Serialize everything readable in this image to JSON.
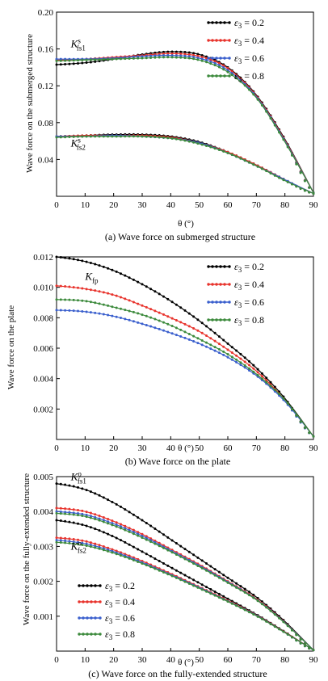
{
  "chart_data": [
    {
      "id": "a",
      "type": "line",
      "caption": "(a) Wave force on submerged structure",
      "xlabel": "θ (°)",
      "ylabel": "Wave force on the submerged structure",
      "xlim": [
        0,
        90
      ],
      "ylim": [
        0,
        0.2
      ],
      "xticks": [
        0,
        10,
        20,
        30,
        40,
        50,
        60,
        70,
        80,
        90
      ],
      "yticks": [
        0.04,
        0.08,
        0.12,
        0.16,
        0.2
      ],
      "ytick_labels": [
        "0.04",
        "0.08",
        "0.12",
        "0.16",
        "0.20"
      ],
      "legend": {
        "position": "top-right",
        "entries": [
          "ε3 = 0.2",
          "ε3 = 0.4",
          "ε3 = 0.6",
          "ε3 = 0.8"
        ]
      },
      "annotations": [
        {
          "base": "K",
          "sub": "fs1",
          "sup": "s",
          "at": [
            5,
            0.162
          ]
        },
        {
          "base": "K",
          "sub": "fs2",
          "sup": "s",
          "at": [
            5,
            0.054
          ]
        }
      ],
      "series": [
        {
          "name": "ε3 = 0.2",
          "color": "#000000",
          "group": "fs1",
          "x": [
            0,
            10,
            20,
            30,
            40,
            50,
            60,
            70,
            80,
            90
          ],
          "y": [
            0.143,
            0.145,
            0.149,
            0.154,
            0.157,
            0.154,
            0.14,
            0.11,
            0.062,
            0.004
          ]
        },
        {
          "name": "ε3 = 0.4",
          "color": "#e8332c",
          "group": "fs1",
          "x": [
            0,
            10,
            20,
            30,
            40,
            50,
            60,
            70,
            80,
            90
          ],
          "y": [
            0.148,
            0.149,
            0.151,
            0.153,
            0.155,
            0.152,
            0.139,
            0.109,
            0.061,
            0.004
          ]
        },
        {
          "name": "ε3 = 0.6",
          "color": "#3a5fcd",
          "group": "fs1",
          "x": [
            0,
            10,
            20,
            30,
            40,
            50,
            60,
            70,
            80,
            90
          ],
          "y": [
            0.149,
            0.149,
            0.15,
            0.152,
            0.153,
            0.15,
            0.137,
            0.108,
            0.06,
            0.004
          ]
        },
        {
          "name": "ε3 = 0.8",
          "color": "#3c8a3c",
          "group": "fs1",
          "x": [
            0,
            10,
            20,
            30,
            40,
            50,
            60,
            70,
            80,
            90
          ],
          "y": [
            0.147,
            0.148,
            0.149,
            0.15,
            0.151,
            0.148,
            0.135,
            0.107,
            0.059,
            0.004
          ]
        },
        {
          "name": "ε3 = 0.2",
          "color": "#000000",
          "group": "fs2",
          "x": [
            0,
            10,
            20,
            30,
            40,
            50,
            60,
            70,
            80,
            90
          ],
          "y": [
            0.065,
            0.066,
            0.067,
            0.067,
            0.065,
            0.059,
            0.048,
            0.034,
            0.018,
            0.003
          ]
        },
        {
          "name": "ε3 = 0.4",
          "color": "#e8332c",
          "group": "fs2",
          "x": [
            0,
            10,
            20,
            30,
            40,
            50,
            60,
            70,
            80,
            90
          ],
          "y": [
            0.065,
            0.066,
            0.066,
            0.066,
            0.064,
            0.058,
            0.048,
            0.034,
            0.018,
            0.003
          ]
        },
        {
          "name": "ε3 = 0.6",
          "color": "#3a5fcd",
          "group": "fs2",
          "x": [
            0,
            10,
            20,
            30,
            40,
            50,
            60,
            70,
            80,
            90
          ],
          "y": [
            0.065,
            0.065,
            0.066,
            0.065,
            0.063,
            0.058,
            0.047,
            0.033,
            0.018,
            0.003
          ]
        },
        {
          "name": "ε3 = 0.8",
          "color": "#3c8a3c",
          "group": "fs2",
          "x": [
            0,
            10,
            20,
            30,
            40,
            50,
            60,
            70,
            80,
            90
          ],
          "y": [
            0.064,
            0.065,
            0.065,
            0.065,
            0.063,
            0.057,
            0.047,
            0.033,
            0.017,
            0.003
          ]
        }
      ]
    },
    {
      "id": "b",
      "type": "line",
      "caption": "(b) Wave force on the plate",
      "xlabel": "θ (°)",
      "ylabel": "Wave force on the plate",
      "xlim": [
        0,
        90
      ],
      "ylim": [
        0,
        0.012
      ],
      "xticks": [
        0,
        10,
        20,
        30,
        40,
        50,
        60,
        70,
        80,
        90
      ],
      "yticks": [
        0.002,
        0.004,
        0.006,
        0.008,
        0.01,
        0.012
      ],
      "ytick_labels": [
        "0.002",
        "0.004",
        "0.006",
        "0.008",
        "0.010",
        "0.012"
      ],
      "legend": {
        "position": "top-right",
        "entries": [
          "ε3 = 0.2",
          "ε3 = 0.4",
          "ε3 = 0.6",
          "ε3 = 0.8"
        ]
      },
      "annotations": [
        {
          "base": "K",
          "sub": "fp",
          "sup": "",
          "at": [
            10,
            0.0105
          ]
        }
      ],
      "series": [
        {
          "name": "ε3 = 0.2",
          "color": "#000000",
          "group": "fp",
          "x": [
            0,
            10,
            20,
            30,
            40,
            50,
            60,
            70,
            80,
            90
          ],
          "y": [
            0.012,
            0.0117,
            0.0111,
            0.0102,
            0.0091,
            0.0078,
            0.0063,
            0.0047,
            0.0027,
            0.0002
          ]
        },
        {
          "name": "ε3 = 0.4",
          "color": "#e8332c",
          "group": "fp",
          "x": [
            0,
            10,
            20,
            30,
            40,
            50,
            60,
            70,
            80,
            90
          ],
          "y": [
            0.0101,
            0.0099,
            0.0095,
            0.0088,
            0.008,
            0.0071,
            0.0059,
            0.0045,
            0.0026,
            0.0002
          ]
        },
        {
          "name": "ε3 = 0.6",
          "color": "#3a5fcd",
          "group": "fp",
          "x": [
            0,
            10,
            20,
            30,
            40,
            50,
            60,
            70,
            80,
            90
          ],
          "y": [
            0.0085,
            0.0084,
            0.0081,
            0.0076,
            0.007,
            0.0063,
            0.0054,
            0.0042,
            0.0025,
            0.0002
          ]
        },
        {
          "name": "ε3 = 0.8",
          "color": "#3c8a3c",
          "group": "fp",
          "x": [
            0,
            10,
            20,
            30,
            40,
            50,
            60,
            70,
            80,
            90
          ],
          "y": [
            0.0092,
            0.0091,
            0.0087,
            0.0082,
            0.0075,
            0.0066,
            0.0056,
            0.0043,
            0.0026,
            0.0002
          ]
        }
      ]
    },
    {
      "id": "c",
      "type": "line",
      "caption": "(c) Wave force on the fully-extended structure",
      "xlabel": "θ (°)",
      "ylabel": "Wave force on the fully-extended structure",
      "xlim": [
        0,
        90
      ],
      "ylim": [
        0,
        0.005
      ],
      "xticks": [
        0,
        10,
        20,
        30,
        40,
        50,
        60,
        70,
        80,
        90
      ],
      "yticks": [
        0.001,
        0.002,
        0.003,
        0.004,
        0.005
      ],
      "ytick_labels": [
        "0.001",
        "0.002",
        "0.003",
        "0.004",
        "0.005"
      ],
      "legend": {
        "position": "bottom-left",
        "entries": [
          "ε3 = 0.2",
          "ε3 = 0.4",
          "ε3 = 0.6",
          "ε3 = 0.8"
        ]
      },
      "annotations": [
        {
          "base": "K",
          "sub": "fs1",
          "sup": "o",
          "at": [
            5,
            0.0049
          ]
        },
        {
          "base": "K",
          "sub": "fs2",
          "sup": "o",
          "at": [
            5,
            0.0029
          ]
        }
      ],
      "series": [
        {
          "name": "ε3 = 0.2",
          "color": "#000000",
          "group": "fs1",
          "x": [
            0,
            10,
            20,
            30,
            40,
            50,
            60,
            70,
            80,
            90
          ],
          "y": [
            0.0048,
            0.00463,
            0.00425,
            0.00375,
            0.0032,
            0.00265,
            0.0021,
            0.00155,
            0.00085,
            3e-05
          ]
        },
        {
          "name": "ε3 = 0.4",
          "color": "#e8332c",
          "group": "fs1",
          "x": [
            0,
            10,
            20,
            30,
            40,
            50,
            60,
            70,
            80,
            90
          ],
          "y": [
            0.0041,
            0.004,
            0.00372,
            0.00335,
            0.00292,
            0.00248,
            0.002,
            0.0015,
            0.00082,
            3e-05
          ]
        },
        {
          "name": "ε3 = 0.6",
          "color": "#3a5fcd",
          "group": "fs1",
          "x": [
            0,
            10,
            20,
            30,
            40,
            50,
            60,
            70,
            80,
            90
          ],
          "y": [
            0.004,
            0.00391,
            0.00365,
            0.0033,
            0.00288,
            0.00245,
            0.00198,
            0.00148,
            0.00081,
            3e-05
          ]
        },
        {
          "name": "ε3 = 0.8",
          "color": "#3c8a3c",
          "group": "fs1",
          "x": [
            0,
            10,
            20,
            30,
            40,
            50,
            60,
            70,
            80,
            90
          ],
          "y": [
            0.00395,
            0.00386,
            0.0036,
            0.00325,
            0.00285,
            0.00242,
            0.00196,
            0.00147,
            0.0008,
            3e-05
          ]
        },
        {
          "name": "ε3 = 0.2",
          "color": "#000000",
          "group": "fs2",
          "x": [
            0,
            10,
            20,
            30,
            40,
            50,
            60,
            70,
            80,
            90
          ],
          "y": [
            0.00375,
            0.0036,
            0.00328,
            0.00285,
            0.0024,
            0.00195,
            0.0015,
            0.00105,
            0.00055,
            3e-05
          ]
        },
        {
          "name": "ε3 = 0.4",
          "color": "#e8332c",
          "group": "fs2",
          "x": [
            0,
            10,
            20,
            30,
            40,
            50,
            60,
            70,
            80,
            90
          ],
          "y": [
            0.00325,
            0.00315,
            0.0029,
            0.00258,
            0.00222,
            0.00184,
            0.00145,
            0.00103,
            0.00054,
            3e-05
          ]
        },
        {
          "name": "ε3 = 0.6",
          "color": "#3a5fcd",
          "group": "fs2",
          "x": [
            0,
            10,
            20,
            30,
            40,
            50,
            60,
            70,
            80,
            90
          ],
          "y": [
            0.00318,
            0.00308,
            0.00285,
            0.00254,
            0.00219,
            0.00182,
            0.00143,
            0.00102,
            0.00053,
            3e-05
          ]
        },
        {
          "name": "ε3 = 0.8",
          "color": "#3c8a3c",
          "group": "fs2",
          "x": [
            0,
            10,
            20,
            30,
            40,
            50,
            60,
            70,
            80,
            90
          ],
          "y": [
            0.00312,
            0.00303,
            0.00281,
            0.00251,
            0.00217,
            0.0018,
            0.00142,
            0.00101,
            0.00053,
            3e-05
          ]
        }
      ]
    }
  ]
}
